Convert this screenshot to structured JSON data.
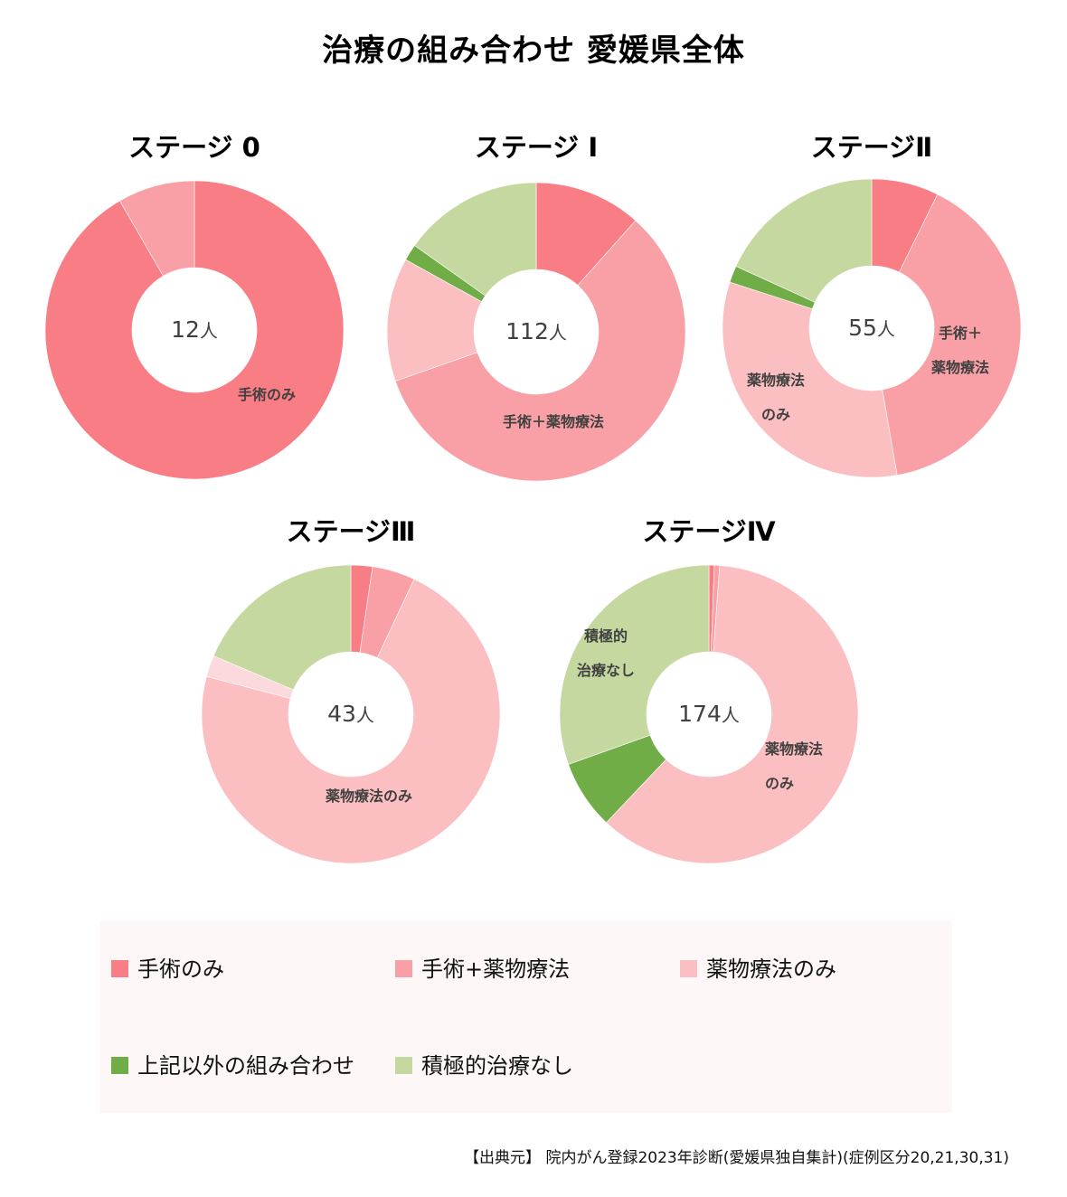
{
  "title": "治療の組み合わせ 愛媛県全体",
  "colors": {
    "surgery_only": "#F87D84",
    "surgery_drug": "#F9A0A6",
    "drug_only": "#FBBFC2",
    "other_combo": "#70AD47",
    "no_treatment": "#C5D89F",
    "other_light": "#FCD9DC"
  },
  "charts": [
    {
      "title": "ステージ 0",
      "total_num": "12",
      "unit": "人"
    },
    {
      "title": "ステージ I",
      "total_num": "112",
      "unit": "人"
    },
    {
      "title": "ステージⅡ",
      "total_num": "55",
      "unit": "人"
    },
    {
      "title": "ステージⅢ",
      "total_num": "43",
      "unit": "人"
    },
    {
      "title": "ステージⅣ",
      "total_num": "174",
      "unit": "人"
    }
  ],
  "segment_labels": {
    "s0": "手術のみ",
    "s1": "手術＋薬物療法",
    "s2a_1": "手術＋",
    "s2a_2": "薬物療法",
    "s2b_1": "薬物療法",
    "s2b_2": "のみ",
    "s3": "薬物療法のみ",
    "s4a_1": "積極的",
    "s4a_2": "治療なし",
    "s4b_1": "薬物療法",
    "s4b_2": "のみ"
  },
  "legend": [
    {
      "label": "手術のみ",
      "color": "#F87D84"
    },
    {
      "label": "手術+薬物療法",
      "color": "#F9A0A6"
    },
    {
      "label": "薬物療法のみ",
      "color": "#FBBFC2"
    },
    {
      "label": "上記以外の組み合わせ",
      "color": "#70AD47"
    },
    {
      "label": "積極的治療なし",
      "color": "#C5D89F"
    }
  ],
  "source": "【出典元】 院内がん登録2023年診断(愛媛県独自集計)(症例区分20,21,30,31)",
  "chart_data": [
    {
      "type": "pie",
      "title": "ステージ 0",
      "center_label": "12人",
      "categories": [
        "手術のみ",
        "手術+薬物療法",
        "薬物療法のみ",
        "上記以外の組み合わせ",
        "積極的治療なし"
      ],
      "values": [
        11,
        1,
        0,
        0,
        0
      ],
      "legend_position": "bottom"
    },
    {
      "type": "pie",
      "title": "ステージ I",
      "center_label": "112人",
      "categories": [
        "手術のみ",
        "手術+薬物療法",
        "薬物療法のみ",
        "上記以外の組み合わせ",
        "積極的治療なし"
      ],
      "values": [
        13,
        65,
        15,
        2,
        17
      ],
      "legend_position": "bottom"
    },
    {
      "type": "pie",
      "title": "ステージⅡ",
      "center_label": "55人",
      "categories": [
        "手術のみ",
        "手術+薬物療法",
        "薬物療法のみ",
        "上記以外の組み合わせ",
        "積極的治療なし"
      ],
      "values": [
        4,
        22,
        18,
        1,
        10
      ],
      "legend_position": "bottom"
    },
    {
      "type": "pie",
      "title": "ステージⅢ",
      "center_label": "43人",
      "categories": [
        "手術のみ",
        "手術+薬物療法",
        "薬物療法のみ",
        "上記以外の組み合わせ",
        "積極的治療なし"
      ],
      "values": [
        1,
        2,
        31,
        1,
        8
      ],
      "legend_position": "bottom"
    },
    {
      "type": "pie",
      "title": "ステージⅣ",
      "center_label": "174人",
      "categories": [
        "手術のみ",
        "手術+薬物療法",
        "薬物療法のみ",
        "上記以外の組み合わせ",
        "積極的治療なし"
      ],
      "values": [
        1,
        1,
        106,
        13,
        53
      ],
      "legend_position": "bottom"
    }
  ]
}
